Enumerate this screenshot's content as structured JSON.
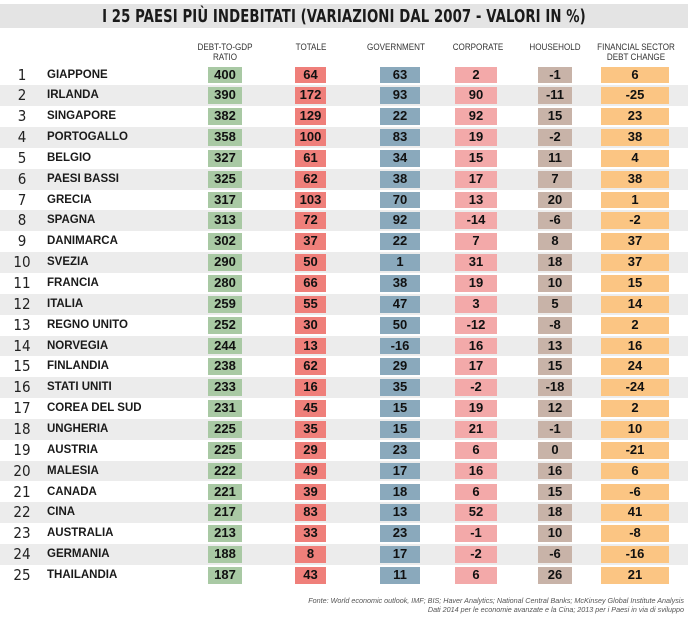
{
  "title": "I 25 PAESI PIÙ INDEBITATI (VARIAZIONI DAL 2007 - VALORI IN %)",
  "chart_data": {
    "type": "table",
    "columns": [
      {
        "key": "debt_to_gdp",
        "label": "DEBT-TO-GDP\nRATIO",
        "color": "#a9c9a4"
      },
      {
        "key": "totale",
        "label": "TOTALE",
        "color": "#ef7f7a"
      },
      {
        "key": "government",
        "label": "GOVERNMENT",
        "color": "#8aa9bc"
      },
      {
        "key": "corporate",
        "label": "CORPORATE",
        "color": "#f3a9a9"
      },
      {
        "key": "household",
        "label": "HOUSEHOLD",
        "color": "#c8b3a8"
      },
      {
        "key": "financial",
        "label": "FINANCIAL SECTOR\nDEBT CHANGE",
        "color": "#fbc583"
      }
    ],
    "rows": [
      {
        "rank": "1",
        "country": "GIAPPONE",
        "values": [
          400,
          64,
          63,
          2,
          -1,
          6
        ]
      },
      {
        "rank": "2",
        "country": "IRLANDA",
        "values": [
          390,
          172,
          93,
          90,
          -11,
          -25
        ]
      },
      {
        "rank": "3",
        "country": "SINGAPORE",
        "values": [
          382,
          129,
          22,
          92,
          15,
          23
        ]
      },
      {
        "rank": "4",
        "country": "PORTOGALLO",
        "values": [
          358,
          100,
          83,
          19,
          -2,
          38
        ]
      },
      {
        "rank": "5",
        "country": "BELGIO",
        "values": [
          327,
          61,
          34,
          15,
          11,
          4
        ]
      },
      {
        "rank": "6",
        "country": "PAESI BASSI",
        "values": [
          325,
          62,
          38,
          17,
          7,
          38
        ]
      },
      {
        "rank": "7",
        "country": "GRECIA",
        "values": [
          317,
          103,
          70,
          13,
          20,
          1
        ]
      },
      {
        "rank": "8",
        "country": "SPAGNA",
        "values": [
          313,
          72,
          92,
          -14,
          -6,
          -2
        ]
      },
      {
        "rank": "9",
        "country": "DANIMARCA",
        "values": [
          302,
          37,
          22,
          7,
          8,
          37
        ]
      },
      {
        "rank": "10",
        "country": "SVEZIA",
        "values": [
          290,
          50,
          1,
          31,
          18,
          37
        ]
      },
      {
        "rank": "11",
        "country": "FRANCIA",
        "values": [
          280,
          66,
          38,
          19,
          10,
          15
        ]
      },
      {
        "rank": "12",
        "country": "ITALIA",
        "values": [
          259,
          55,
          47,
          3,
          5,
          14
        ]
      },
      {
        "rank": "13",
        "country": "REGNO UNITO",
        "values": [
          252,
          30,
          50,
          -12,
          -8,
          2
        ]
      },
      {
        "rank": "14",
        "country": "NORVEGIA",
        "values": [
          244,
          13,
          -16,
          16,
          13,
          16
        ]
      },
      {
        "rank": "15",
        "country": "FINLANDIA",
        "values": [
          238,
          62,
          29,
          17,
          15,
          24
        ]
      },
      {
        "rank": "16",
        "country": "STATI UNITI",
        "values": [
          233,
          16,
          35,
          -2,
          -18,
          -24
        ]
      },
      {
        "rank": "17",
        "country": "COREA DEL SUD",
        "values": [
          231,
          45,
          15,
          19,
          12,
          2
        ]
      },
      {
        "rank": "18",
        "country": "UNGHERIA",
        "values": [
          225,
          35,
          15,
          21,
          -1,
          10
        ]
      },
      {
        "rank": "19",
        "country": "AUSTRIA",
        "values": [
          225,
          29,
          23,
          6,
          0,
          -21
        ]
      },
      {
        "rank": "20",
        "country": "MALESIA",
        "values": [
          222,
          49,
          17,
          16,
          16,
          6
        ]
      },
      {
        "rank": "21",
        "country": "CANADA",
        "values": [
          221,
          39,
          18,
          6,
          15,
          -6
        ]
      },
      {
        "rank": "22",
        "country": "CINA",
        "values": [
          217,
          83,
          13,
          52,
          18,
          41
        ]
      },
      {
        "rank": "23",
        "country": "AUSTRALIA",
        "values": [
          213,
          33,
          23,
          -1,
          10,
          -8
        ]
      },
      {
        "rank": "24",
        "country": "GERMANIA",
        "values": [
          188,
          8,
          17,
          -2,
          -6,
          -16
        ]
      },
      {
        "rank": "25",
        "country": "THAILANDIA",
        "values": [
          187,
          43,
          11,
          6,
          26,
          21
        ]
      }
    ]
  },
  "source": {
    "line1": "Fonte: World economic outlook, IMF; BIS; Haver Analytics; National Central Banks; McKinsey Global Institute Analysis",
    "line2": "Dati 2014 per le economie avanzate e la Cina; 2013 per i Paesi in via di sviluppo"
  }
}
